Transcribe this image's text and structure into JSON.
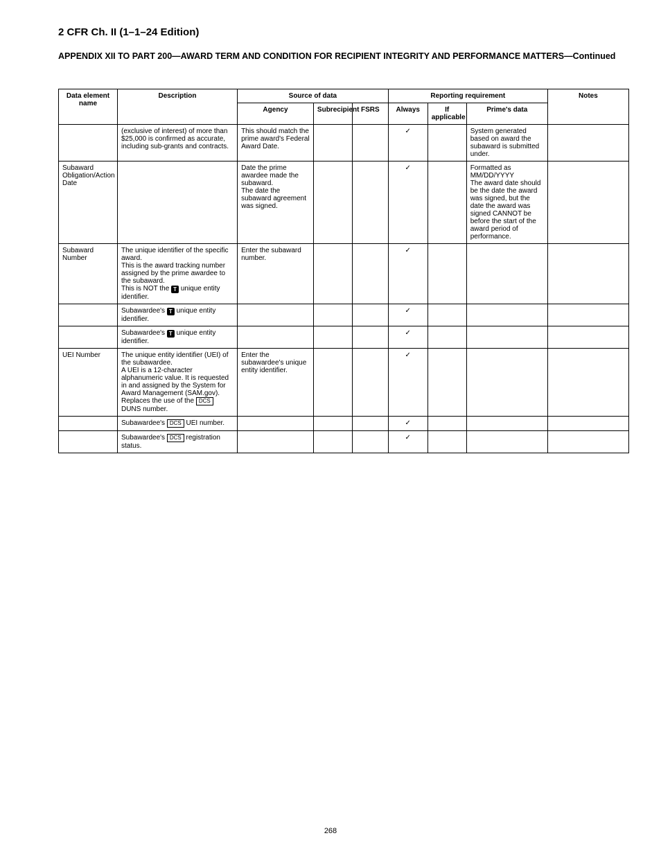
{
  "section_title": "2 CFR Ch. II (1–1–24 Edition)",
  "table_title": "APPENDIX XII TO PART 200—AWARD TERM AND CONDITION FOR RECIPIENT INTEGRITY AND PERFORMANCE MATTERS—Continued",
  "subtitle_note": "",
  "page_number": "268",
  "cols": {
    "name": "Data element name",
    "desc": "Description",
    "resp_group": "Source of data",
    "resp_sub": [
      "Agency",
      "Subrecipient",
      "FSRS"
    ],
    "cond_group": "Reporting requirement",
    "cond_sub": [
      "Always",
      "If applicable",
      "Prime's data"
    ],
    "notes": "Notes"
  },
  "rows": [
    {
      "name": "",
      "desc": "(exclusive of interest) of more than $25,000 is confirmed as accurate, including sub-grants and contracts.",
      "r1": "This should match the prime award's Federal Award Date.",
      "r2": "",
      "r3": "",
      "c1": "✓",
      "c2": "",
      "c3": "System generated based on award the subaward is submitted under.",
      "notes": ""
    },
    {
      "name": "Subaward Obligation/Action Date",
      "desc": "",
      "r1": "Date the prime awardee made the subaward.\nThe date the subaward agreement was signed.",
      "r2": "",
      "r3": "",
      "c1": "✓",
      "c2": "",
      "c3": "Formatted as MM/DD/YYYY\nThe award date should be the date the award was signed, but the date the award was signed CANNOT be before the start of the award period of performance.",
      "notes": ""
    },
    {
      "name": "Subaward Number",
      "desc_lines": [
        "The unique identifier of the specific award.",
        "This is the award tracking number assigned by the prime awardee to the subaward.",
        "This is NOT the [T] unique entity identifier."
      ],
      "r1": "Enter the subaward number.",
      "r2": "",
      "r3": "",
      "c1": "✓",
      "c2": "",
      "c3": "",
      "notes": ""
    },
    {
      "name": "",
      "desc_lines": [
        "Subawardee's [T] unique entity identifier."
      ],
      "r1": "",
      "r2": "",
      "r3": "",
      "c1": "✓",
      "c2": "",
      "c3": "",
      "notes": ""
    },
    {
      "name": "",
      "desc_lines": [
        "Subawardee's [T] unique entity identifier."
      ],
      "r1": "",
      "r2": "",
      "r3": "",
      "c1": "✓",
      "c2": "",
      "c3": "",
      "notes": ""
    },
    {
      "name": "UEI Number",
      "desc_lines": [
        "The unique entity identifier (UEI) of the subawardee.",
        "A UEI is a 12-character alphanumeric value. It is requested in and assigned by the System for Award Management (SAM.gov).",
        "Replaces the use of the [DCS] DUNS number."
      ],
      "r1": "Enter the subawardee's unique entity identifier.",
      "r2": "",
      "r3": "",
      "c1": "✓",
      "c2": "",
      "c3": "",
      "notes": ""
    },
    {
      "name": "",
      "desc_lines": [
        "Subawardee's [DCS] UEI number."
      ],
      "r1": "",
      "r2": "",
      "r3": "",
      "c1": "✓",
      "c2": "",
      "c3": "",
      "notes": ""
    },
    {
      "name": "",
      "desc_lines": [
        "Subawardee's [DCS] registration status."
      ],
      "r1": "",
      "r2": "",
      "r3": "",
      "c1": "✓",
      "c2": "",
      "c3": "",
      "notes": ""
    }
  ]
}
